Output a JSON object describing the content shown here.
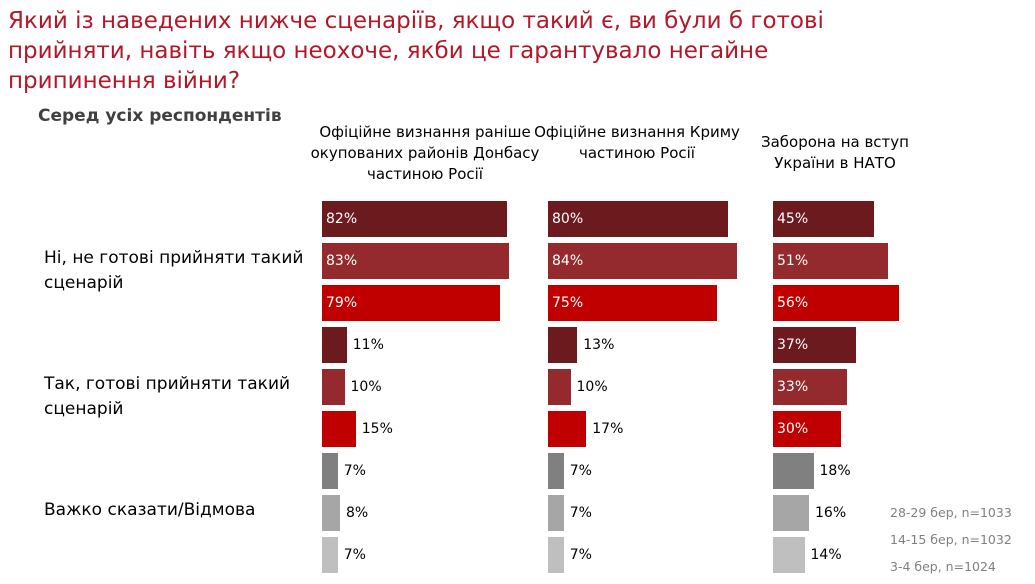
{
  "title": "Який із наведених нижче сценаріїв, якщо такий є, ви були б готові прийняти, навіть якщо неохоче, якби це гарантувало негайне припинення війни?",
  "subtitle": "Серед усіх респондентів",
  "chart_data": {
    "type": "bar",
    "orientation": "horizontal",
    "panels": [
      "Офіційне визнання раніше окупованих районів Донбасу частиною Росії",
      "Офіційне визнання Криму частиною Росії",
      "Заборона на вступ України в НАТО"
    ],
    "categories": [
      "Ні, не готові прийняти такий сценарій",
      "Так, готові прийняти такий сценарій",
      "Важко сказати/Відмова"
    ],
    "series": [
      {
        "name": "28-29 бер, n=1033",
        "values": [
          [
            82,
            11,
            7
          ],
          [
            80,
            13,
            7
          ],
          [
            45,
            37,
            18
          ]
        ]
      },
      {
        "name": "14-15 бер, n=1032",
        "values": [
          [
            83,
            10,
            8
          ],
          [
            84,
            10,
            7
          ],
          [
            51,
            33,
            16
          ]
        ]
      },
      {
        "name": "3-4 бер, n=1024",
        "values": [
          [
            79,
            15,
            7
          ],
          [
            75,
            17,
            7
          ],
          [
            56,
            30,
            14
          ]
        ]
      }
    ],
    "unit": "%",
    "legend_position": "bottom-right",
    "colors": {
      "no": [
        "#6d1a1f",
        "#942a2e",
        "#c00000"
      ],
      "yes": [
        "#6d1a1f",
        "#942a2e",
        "#c00000"
      ],
      "hard": [
        "#808080",
        "#a6a6a6",
        "#bfbfbf"
      ]
    }
  }
}
